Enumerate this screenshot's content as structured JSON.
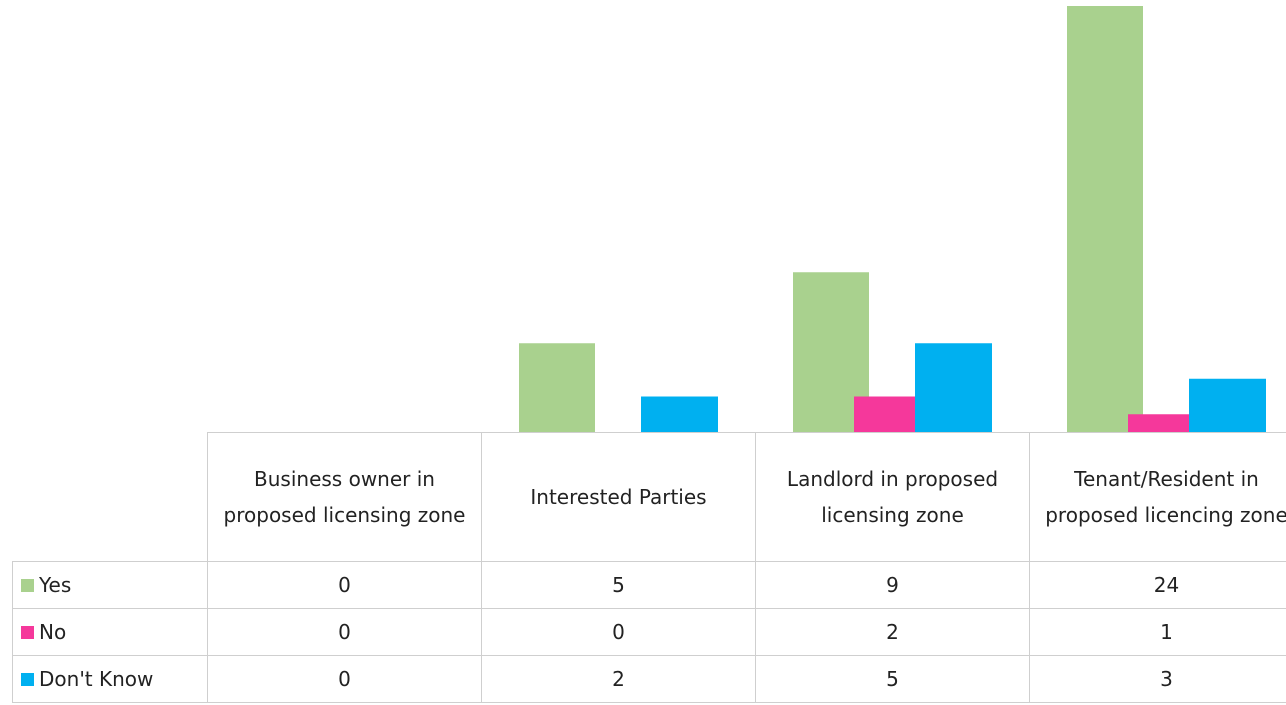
{
  "chart_data": {
    "type": "bar",
    "categories": [
      "Business owner in proposed licensing zone",
      "Interested Parties",
      "Landlord in proposed licensing zone",
      "Tenant/Resident in proposed licencing zone"
    ],
    "series": [
      {
        "name": "Yes",
        "color": "#a9d18e",
        "values": [
          0,
          5,
          9,
          24
        ]
      },
      {
        "name": "No",
        "color": "#f5389b",
        "values": [
          0,
          0,
          2,
          1
        ]
      },
      {
        "name": "Don't Know",
        "color": "#00b0f0",
        "values": [
          0,
          2,
          5,
          3
        ]
      }
    ],
    "data_table": true
  }
}
